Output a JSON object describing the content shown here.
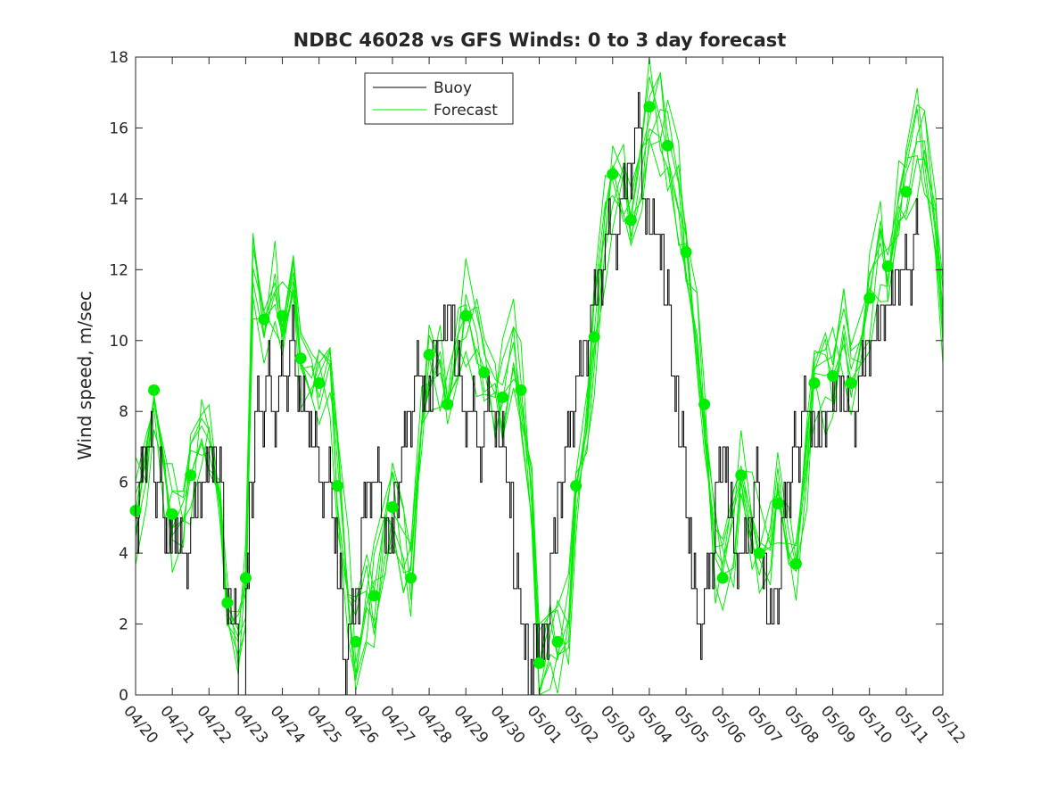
{
  "chart_data": {
    "type": "line",
    "title": "NDBC 46028 vs GFS Winds: 0 to 3 day forecast",
    "xlabel": "",
    "ylabel": "Wind speed, m/sec",
    "x_ticks": [
      "04/20",
      "04/21",
      "04/22",
      "04/23",
      "04/24",
      "04/25",
      "04/26",
      "04/27",
      "04/28",
      "04/29",
      "04/30",
      "05/01",
      "05/02",
      "05/03",
      "05/04",
      "05/05",
      "05/06",
      "05/07",
      "05/08",
      "05/09",
      "05/10",
      "05/11",
      "05/12"
    ],
    "xlim_days": [
      0,
      22
    ],
    "y_ticks": [
      0,
      2,
      4,
      6,
      8,
      10,
      12,
      14,
      16,
      18
    ],
    "ylim": [
      0,
      18
    ],
    "grid": false,
    "legend_position": "top-center",
    "colors": {
      "buoy": "#000000",
      "forecast": "#00ee00",
      "axes": "#262626"
    },
    "series": [
      {
        "name": "Buoy",
        "style": "step",
        "x_days": [
          0.0,
          0.1,
          0.2,
          0.35,
          0.5,
          0.6,
          0.75,
          0.85,
          1.0,
          1.15,
          1.3,
          1.5,
          1.7,
          1.85,
          2.0,
          2.2,
          2.4,
          2.6,
          2.8,
          3.0,
          3.1,
          3.25,
          3.4,
          3.55,
          3.7,
          3.9,
          4.05,
          4.2,
          4.35,
          4.5,
          4.65,
          4.8,
          5.0,
          5.2,
          5.35,
          5.5,
          5.65,
          5.8,
          6.0,
          6.15,
          6.3,
          6.5,
          6.7,
          6.9,
          7.05,
          7.25,
          7.4,
          7.6,
          7.75,
          7.9,
          8.1,
          8.3,
          8.5,
          8.7,
          8.9,
          9.1,
          9.3,
          9.5,
          9.7,
          9.9,
          10.1,
          10.3,
          10.5,
          10.7,
          10.85,
          11.0,
          11.15,
          11.3,
          11.5,
          11.7,
          11.85,
          12.0,
          12.2,
          12.4,
          12.6,
          12.8,
          13.0,
          13.2,
          13.4,
          13.6,
          13.8,
          14.0,
          14.2,
          14.4,
          14.6,
          14.8,
          15.0,
          15.15,
          15.3,
          15.5,
          15.65,
          15.8,
          16.0,
          16.15,
          16.3,
          16.5,
          16.7,
          16.85,
          17.0,
          17.2,
          17.4,
          17.6,
          17.75,
          17.9,
          18.0,
          18.15,
          18.3,
          18.5,
          18.7,
          18.9,
          19.1,
          19.3,
          19.5,
          19.7,
          19.9,
          20.1,
          20.3,
          20.5,
          20.7,
          20.9,
          21.05,
          21.2
        ],
        "values": [
          5,
          6,
          7,
          7,
          6,
          6,
          5,
          4,
          5,
          4,
          4,
          5,
          6,
          6,
          7,
          6,
          3,
          2,
          0,
          3,
          6,
          8,
          8,
          9,
          8,
          9,
          9,
          10,
          9,
          8,
          8,
          7,
          6,
          6,
          5,
          3,
          1,
          2,
          3,
          5,
          6,
          6,
          5,
          4,
          6,
          7,
          8,
          9,
          9,
          8,
          10,
          10,
          11,
          9,
          8,
          8,
          7,
          8,
          8,
          7,
          6,
          3,
          2,
          0,
          2,
          1,
          2,
          4,
          6,
          7,
          8,
          9,
          10,
          11,
          12,
          13,
          13,
          14,
          15,
          16,
          14,
          13,
          13,
          11,
          9,
          7,
          5,
          3,
          2,
          3,
          4,
          6,
          7,
          5,
          4,
          4,
          5,
          6,
          4,
          2,
          3,
          5,
          6,
          7,
          7,
          8,
          8,
          7,
          8,
          8,
          9,
          8,
          8,
          9,
          10,
          10,
          11,
          11,
          12,
          12,
          12,
          13
        ],
        "note_color": "#000000"
      },
      {
        "name": "Forecast",
        "style": "multi-line",
        "runs": 8,
        "x_days": [
          0.0,
          0.3,
          0.5,
          0.8,
          1.0,
          1.3,
          1.5,
          1.8,
          2.0,
          2.3,
          2.5,
          2.8,
          3.0,
          3.2,
          3.5,
          3.8,
          4.0,
          4.3,
          4.5,
          4.8,
          5.0,
          5.3,
          5.5,
          5.8,
          6.0,
          6.3,
          6.5,
          6.8,
          7.0,
          7.3,
          7.5,
          7.8,
          8.0,
          8.3,
          8.5,
          8.8,
          9.0,
          9.3,
          9.5,
          9.8,
          10.0,
          10.3,
          10.5,
          10.8,
          11.0,
          11.3,
          11.5,
          11.8,
          12.0,
          12.3,
          12.5,
          12.8,
          13.0,
          13.3,
          13.5,
          13.8,
          14.0,
          14.3,
          14.5,
          14.8,
          15.0,
          15.3,
          15.5,
          15.8,
          16.0,
          16.3,
          16.5,
          16.8,
          17.0,
          17.3,
          17.5,
          17.8,
          18.0,
          18.3,
          18.5,
          18.8,
          19.0,
          19.3,
          19.5,
          19.8,
          20.0,
          20.3,
          20.5,
          20.8,
          21.0,
          21.3,
          21.5,
          21.8,
          22.0
        ],
        "values": [
          5.2,
          6.5,
          8.6,
          6.5,
          5.1,
          5.5,
          6.2,
          7.5,
          6.8,
          5.0,
          2.6,
          2.0,
          3.3,
          12.0,
          10.6,
          11.5,
          10.7,
          11.8,
          9.5,
          9.0,
          8.8,
          9.5,
          5.9,
          3.0,
          1.5,
          3.0,
          2.8,
          4.5,
          5.3,
          4.0,
          3.3,
          8.0,
          9.6,
          9.0,
          8.2,
          9.5,
          10.7,
          10.0,
          9.1,
          8.5,
          8.4,
          10.0,
          8.6,
          5.0,
          0.9,
          1.5,
          1.5,
          2.5,
          5.9,
          8.0,
          10.1,
          13.0,
          14.7,
          14.5,
          13.4,
          15.0,
          16.6,
          16.2,
          15.5,
          14.0,
          12.5,
          10.5,
          8.2,
          4.0,
          3.3,
          4.5,
          6.2,
          5.0,
          4.0,
          4.5,
          5.4,
          4.0,
          3.7,
          6.5,
          8.8,
          9.0,
          9.0,
          10.0,
          8.8,
          10.0,
          11.2,
          12.5,
          12.1,
          14.0,
          14.2,
          15.5,
          15.5,
          13.5,
          11.0
        ],
        "markers": {
          "x_days": [
            0.0,
            0.5,
            1.0,
            1.5,
            2.5,
            3.0,
            3.5,
            4.0,
            4.5,
            5.0,
            5.5,
            6.0,
            6.5,
            7.0,
            7.5,
            8.0,
            8.5,
            9.0,
            9.5,
            10.0,
            10.5,
            11.0,
            11.5,
            12.0,
            12.5,
            13.0,
            13.5,
            14.0,
            14.5,
            15.0,
            15.5,
            16.0,
            16.5,
            17.0,
            17.5,
            18.0,
            18.5,
            19.0,
            19.5,
            20.0,
            20.5,
            21.0
          ],
          "values": [
            5.2,
            8.6,
            5.1,
            6.2,
            2.6,
            3.3,
            10.6,
            10.7,
            9.5,
            8.8,
            5.9,
            1.5,
            2.8,
            5.3,
            3.3,
            9.6,
            8.2,
            10.7,
            9.1,
            8.4,
            8.6,
            0.9,
            1.5,
            5.9,
            10.1,
            14.7,
            13.4,
            16.6,
            15.5,
            12.5,
            8.2,
            3.3,
            6.2,
            4.0,
            5.4,
            3.7,
            8.8,
            9.0,
            8.8,
            11.2,
            12.1,
            14.2
          ]
        }
      }
    ]
  }
}
